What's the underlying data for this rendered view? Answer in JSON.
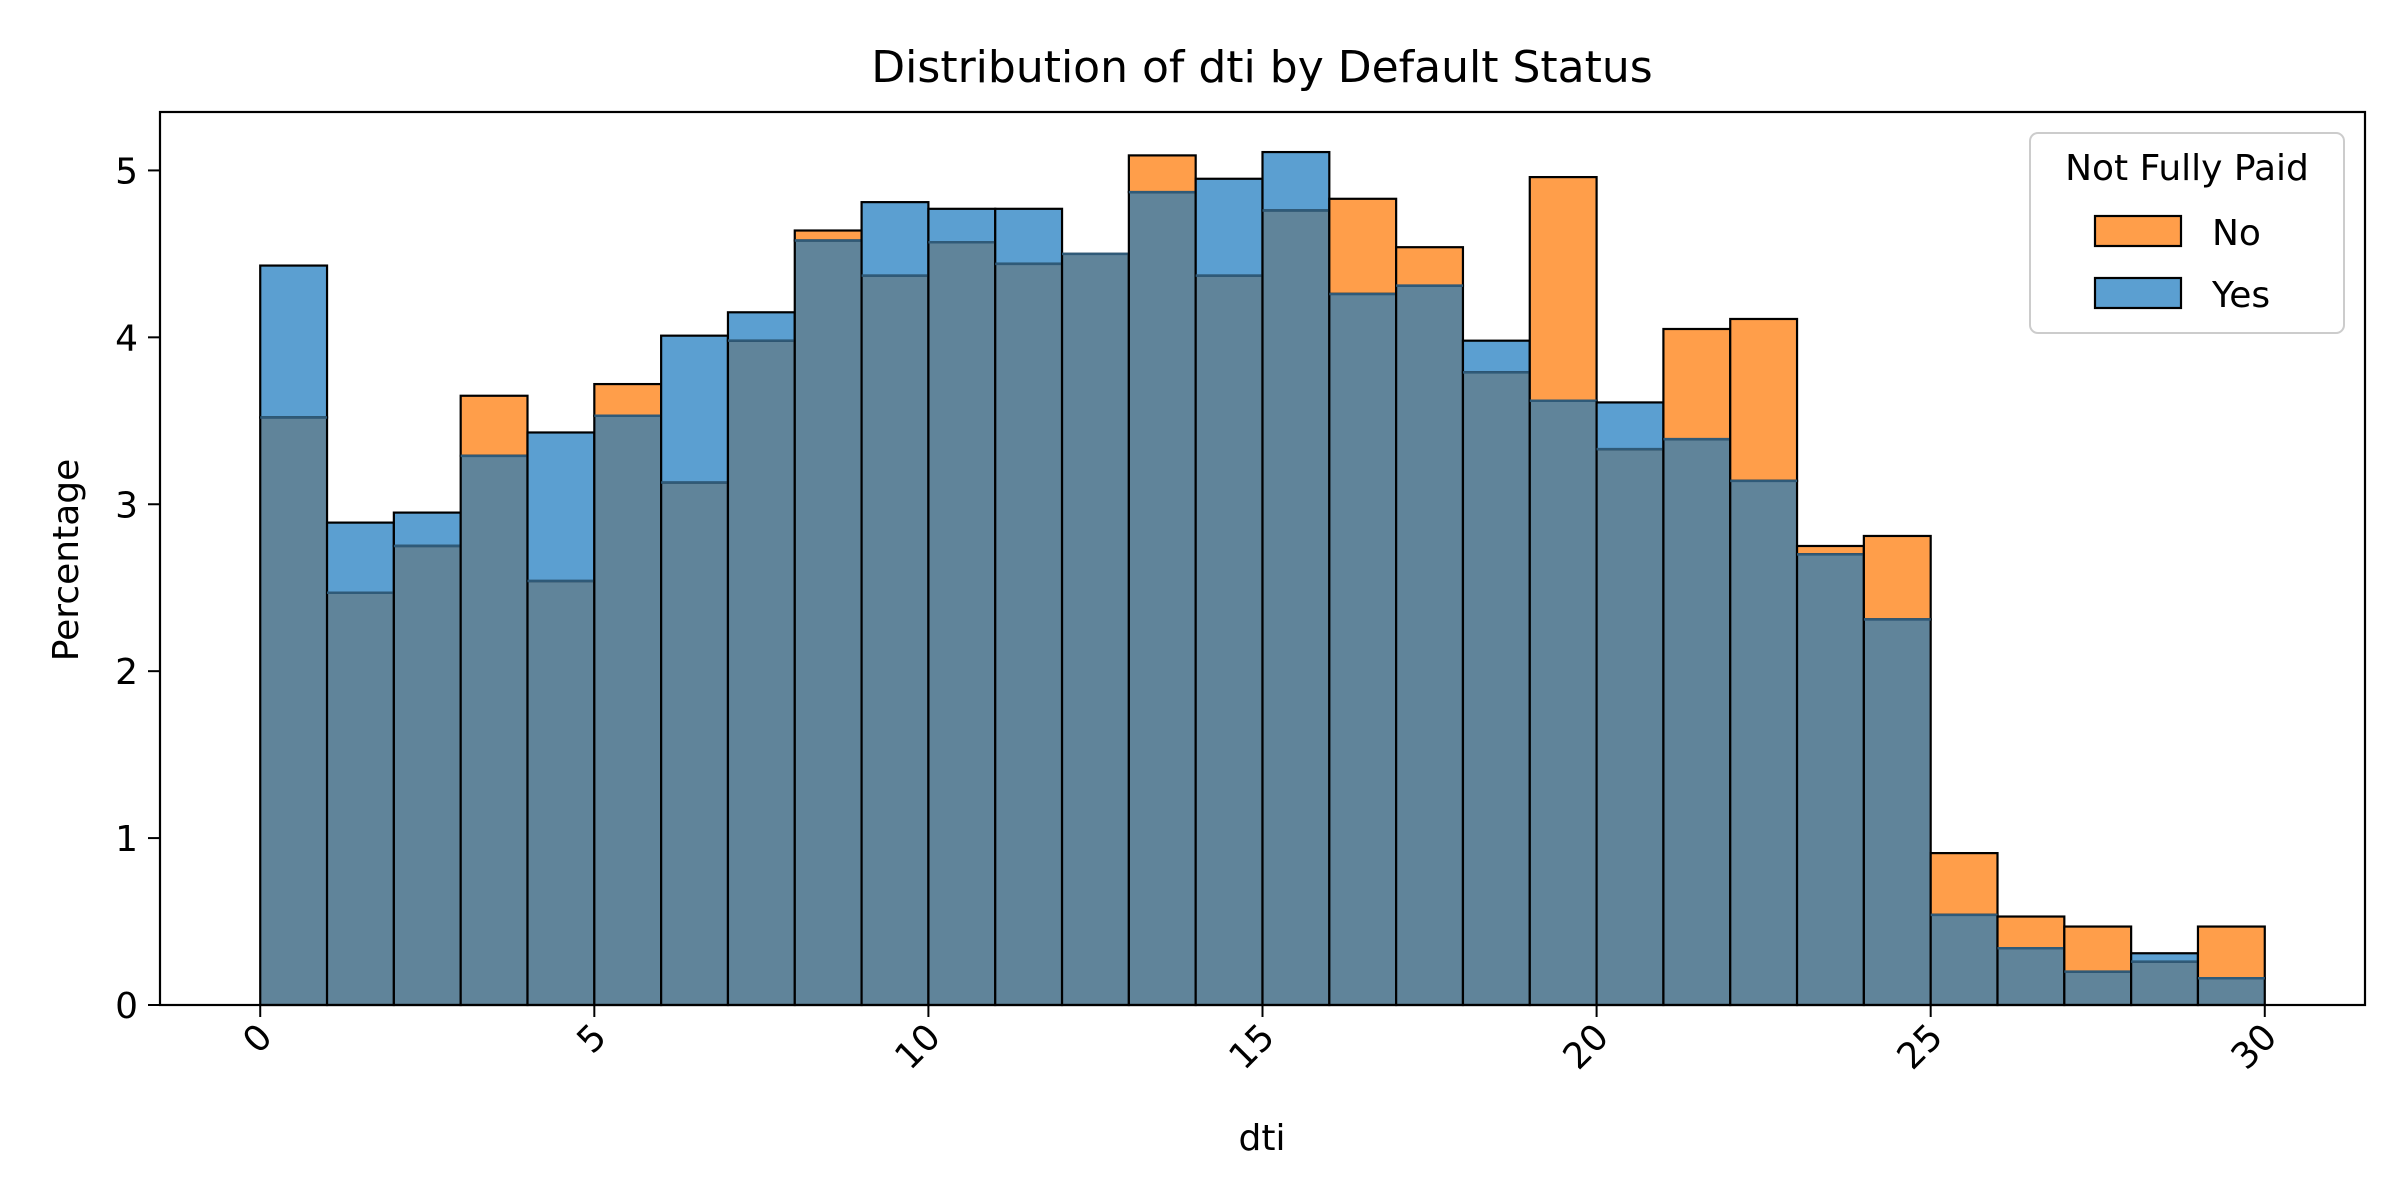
{
  "chart_data": {
    "type": "histogram",
    "title": "Distribution of dti by Default Status",
    "xlabel": "dti",
    "ylabel": "Percentage",
    "xlim": [
      -1.5,
      31.5
    ],
    "ylim": [
      0,
      5.35
    ],
    "xticks": [
      0,
      5,
      10,
      15,
      20,
      25,
      30
    ],
    "yticks": [
      0,
      1,
      2,
      3,
      4,
      5
    ],
    "xtick_rotation": 45,
    "bin_edges": [
      0,
      1,
      2,
      3,
      4,
      5,
      6,
      7,
      8,
      9,
      10,
      11,
      12,
      13,
      14,
      15,
      16,
      17,
      18,
      19,
      20,
      21,
      22,
      23,
      24,
      25,
      26,
      27,
      28,
      29,
      30
    ],
    "legend": {
      "title": "Not Fully Paid",
      "position": "top-right",
      "entries": [
        "No",
        "Yes"
      ]
    },
    "series": [
      {
        "name": "No",
        "color": "#ff9e4a",
        "values": [
          3.52,
          2.47,
          2.75,
          3.65,
          2.54,
          3.72,
          3.13,
          3.98,
          4.64,
          4.37,
          4.57,
          4.44,
          4.5,
          5.09,
          4.37,
          4.76,
          4.83,
          4.54,
          3.79,
          4.96,
          3.33,
          4.05,
          4.11,
          2.75,
          2.81,
          0.91,
          0.53,
          0.47,
          0.26,
          0.47
        ]
      },
      {
        "name": "Yes",
        "color": "#5b9fd1",
        "values": [
          4.43,
          2.89,
          2.95,
          3.29,
          3.43,
          3.53,
          4.01,
          4.15,
          4.58,
          4.81,
          4.77,
          4.77,
          4.5,
          4.87,
          4.95,
          5.11,
          4.26,
          4.31,
          3.98,
          3.62,
          3.61,
          3.39,
          3.14,
          2.7,
          2.31,
          0.54,
          0.34,
          0.2,
          0.31,
          0.16
        ]
      }
    ],
    "overlap_color": "#60849a",
    "grid": false
  }
}
